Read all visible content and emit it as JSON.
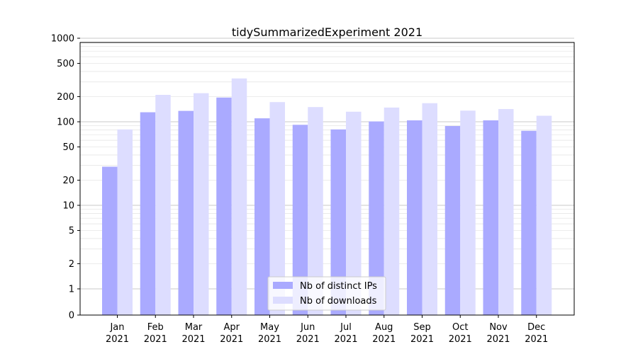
{
  "chart_data": {
    "type": "bar",
    "title": "tidySummarizedExperiment 2021",
    "xlabel": "",
    "ylabel": "",
    "yscale": "symlog",
    "yticks": [
      "0",
      "1",
      "2",
      "5",
      "10",
      "20",
      "50",
      "100",
      "200",
      "500",
      "1000"
    ],
    "categories": [
      {
        "month": "Jan",
        "year": "2021"
      },
      {
        "month": "Feb",
        "year": "2021"
      },
      {
        "month": "Mar",
        "year": "2021"
      },
      {
        "month": "Apr",
        "year": "2021"
      },
      {
        "month": "May",
        "year": "2021"
      },
      {
        "month": "Jun",
        "year": "2021"
      },
      {
        "month": "Jul",
        "year": "2021"
      },
      {
        "month": "Aug",
        "year": "2021"
      },
      {
        "month": "Sep",
        "year": "2021"
      },
      {
        "month": "Oct",
        "year": "2021"
      },
      {
        "month": "Nov",
        "year": "2021"
      },
      {
        "month": "Dec",
        "year": "2021"
      }
    ],
    "series": [
      {
        "name": "Nb of distinct IPs",
        "color": "#aaaaff",
        "values": [
          29,
          130,
          135,
          195,
          110,
          92,
          81,
          101,
          104,
          89,
          104,
          78
        ]
      },
      {
        "name": "Nb of downloads",
        "color": "#ddddff",
        "values": [
          81,
          210,
          220,
          330,
          172,
          150,
          132,
          148,
          167,
          136,
          142,
          118
        ]
      }
    ],
    "grid": true,
    "legend": "bottom-center"
  }
}
